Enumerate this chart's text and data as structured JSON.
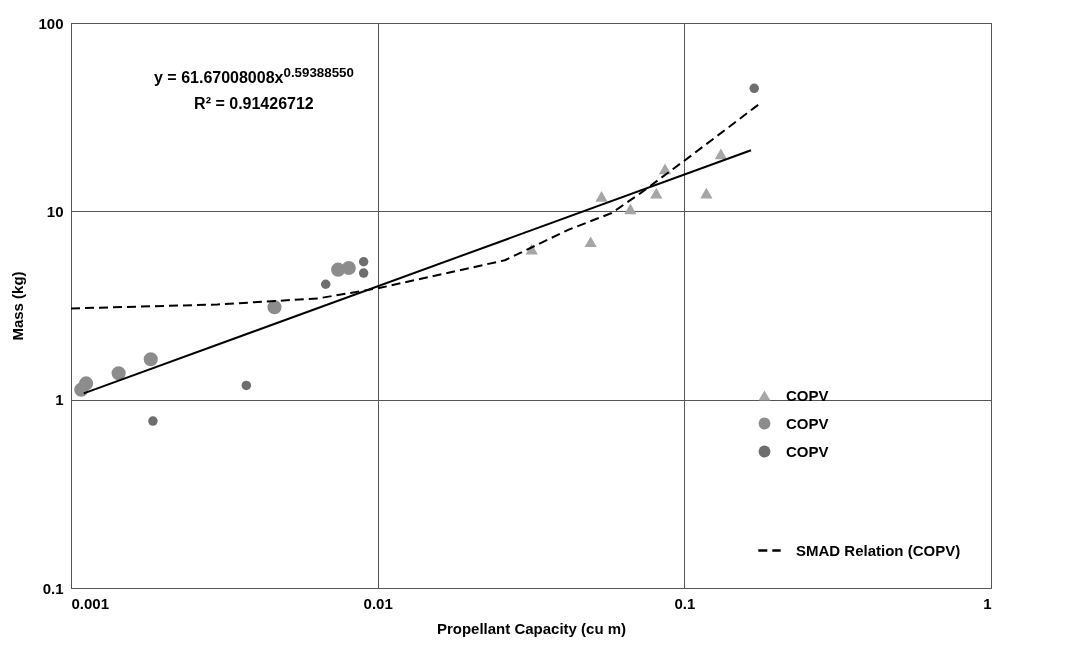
{
  "chart_data": {
    "type": "scatter",
    "xlabel": "Propellant Capacity (cu m)",
    "ylabel": "Mass (kg)",
    "annotations": [
      "y = 61.67008008x$^{0.59388550}$",
      "R² = 0.91426712"
    ],
    "log": "xy",
    "grid": true,
    "legend": "bottom right",
    "xlim": [
      0.001,
      1
    ],
    "xticks": [
      0.001,
      0.01,
      0.1,
      1
    ],
    "ylim": [
      0.1,
      100
    ],
    "yticks": [
      0.1,
      1,
      10,
      100
    ],
    "series": [
      {
        "name": "COPV",
        "type": "scatter",
        "marker": "triangle",
        "color": "#a6a6a6",
        "x": [
          0.0318,
          0.0495,
          0.0537,
          0.0667,
          0.081,
          0.0865,
          0.118,
          0.1316
        ],
        "values": [
          6.3,
          6.9,
          12.0,
          10.3,
          12.5,
          16.8,
          12.5,
          20.2
        ]
      },
      {
        "name": "COPV",
        "type": "scatter",
        "marker": "circle",
        "color": "#8c8c8c",
        "x": [
          0.00108,
          0.00112,
          0.00143,
          0.00182,
          0.00461,
          0.00743,
          0.00805
        ],
        "values": [
          1.13,
          1.22,
          1.38,
          1.64,
          3.1,
          4.9,
          5.0
        ]
      },
      {
        "name": "COPV",
        "type": "scatter",
        "marker": "circle",
        "color": "#6e6e6e",
        "x": [
          0.00185,
          0.00373,
          0.00677,
          0.009,
          0.009,
          0.169
        ],
        "values": [
          0.77,
          1.19,
          4.1,
          5.4,
          4.7,
          45
        ]
      },
      {
        "name": "SMAD Relation (COPV)",
        "type": "line",
        "line_style": "dashed",
        "marker": "none",
        "color": "#000000",
        "x": [
          0.001,
          0.003,
          0.0064,
          0.01,
          0.026,
          0.042,
          0.058,
          0.072,
          0.105,
          0.175
        ],
        "values": [
          3.05,
          3.2,
          3.45,
          3.9,
          5.5,
          8.0,
          9.8,
          12.5,
          19.7,
          37
        ]
      },
      {
        "type": "line",
        "line_style": "solid",
        "marker": "none",
        "color": "#000000",
        "x": [
          0.0011,
          0.165
        ],
        "values": [
          1.08,
          21.1
        ]
      }
    ]
  }
}
